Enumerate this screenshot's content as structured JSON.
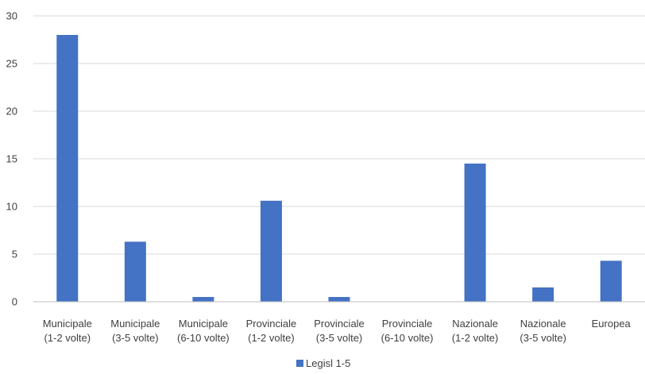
{
  "chart_data": {
    "type": "bar",
    "categories": [
      [
        "Municipale",
        "(1-2 volte)"
      ],
      [
        "Municipale",
        "(3-5 volte)"
      ],
      [
        "Municipale",
        "(6-10 volte)"
      ],
      [
        "Provinciale",
        "(1-2 volte)"
      ],
      [
        "Provinciale",
        "(3-5 volte)"
      ],
      [
        "Provinciale",
        "(6-10 volte)"
      ],
      [
        "Nazionale",
        "(1-2 volte)"
      ],
      [
        "Nazionale",
        "(3-5 volte)"
      ],
      [
        "Europea"
      ]
    ],
    "series": [
      {
        "name": "Legisl 1-5",
        "values": [
          28,
          6.3,
          0.5,
          10.6,
          0.5,
          0,
          14.5,
          1.5,
          4.3
        ]
      }
    ],
    "ylim": [
      0,
      30
    ],
    "yticks": [
      0,
      5,
      10,
      15,
      20,
      25,
      30
    ],
    "grid": true,
    "legend_position": "bottom",
    "colors": {
      "bar": "#4472C4",
      "grid": "#d9d9d9",
      "axis": "#bfbfbf",
      "text": "#404040"
    }
  }
}
